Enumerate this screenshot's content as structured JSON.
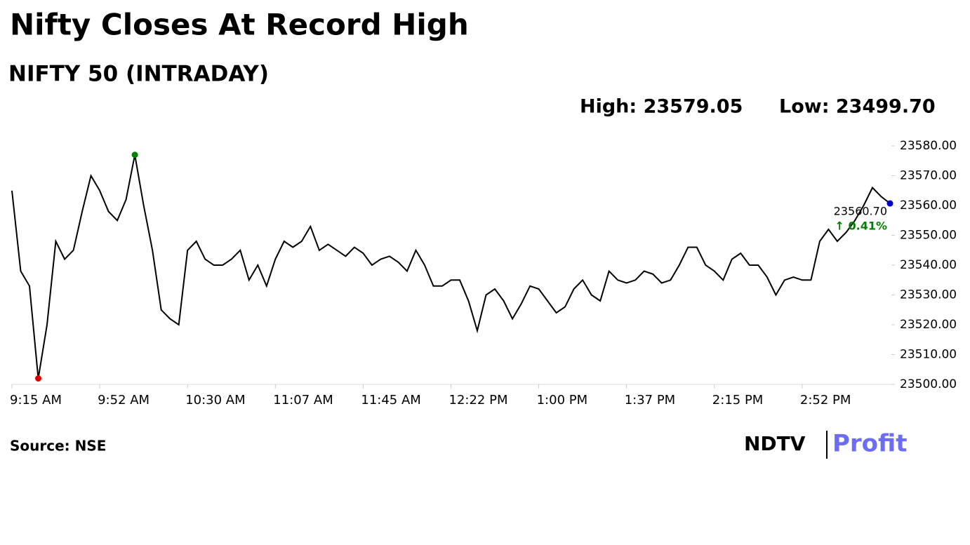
{
  "chart_data": {
    "type": "line",
    "title": "Nifty Closes At Record High",
    "subtitle": "NIFTY 50 (INTRADAY)",
    "high": "High: 23579.05",
    "low": "Low: 23499.70",
    "change": "↑ 0.41%",
    "source": "Source: NSE",
    "brand": [
      "NDTV",
      "Profit"
    ],
    "categories": [
      "9:15 AM",
      null,
      null,
      null,
      null,
      null,
      null,
      null,
      null,
      null,
      "9:52 AM",
      null,
      null,
      null,
      null,
      null,
      null,
      null,
      null,
      null,
      "10:30 AM",
      null,
      null,
      null,
      null,
      null,
      null,
      null,
      null,
      null,
      "11:07 AM",
      null,
      null,
      null,
      null,
      null,
      null,
      null,
      null,
      null,
      "11:45 AM",
      null,
      null,
      null,
      null,
      null,
      null,
      null,
      null,
      null,
      "12:22 PM",
      null,
      null,
      null,
      null,
      null,
      null,
      null,
      null,
      null,
      "1:00 PM",
      null,
      null,
      null,
      null,
      null,
      null,
      null,
      null,
      null,
      "1:37 PM",
      null,
      null,
      null,
      null,
      null,
      null,
      null,
      null,
      null,
      "2:15 PM",
      null,
      null,
      null,
      null,
      null,
      null,
      null,
      null,
      null,
      "2:52 PM",
      null,
      null,
      null,
      null,
      null,
      null,
      null,
      null,
      null,
      null
    ],
    "series": [
      {
        "color": "#000000",
        "values": [
          23565,
          23538,
          23533,
          23502,
          23520,
          23548,
          23542,
          23545,
          23558,
          23570,
          23565,
          23558,
          23555,
          23562,
          23577,
          23560,
          23545,
          23525,
          23522,
          23520,
          23545,
          23548,
          23542,
          23540,
          23540,
          23542,
          23545,
          23535,
          23540,
          23533,
          23542,
          23548,
          23546,
          23548,
          23553,
          23545,
          23547,
          23545,
          23543,
          23546,
          23544,
          23540,
          23542,
          23543,
          23541,
          23538,
          23545,
          23540,
          23533,
          23533,
          23535,
          23535,
          23528,
          23518,
          23530,
          23532,
          23528,
          23522,
          23527,
          23533,
          23532,
          23528,
          23524,
          23526,
          23532,
          23535,
          23530,
          23528,
          23538,
          23535,
          23534,
          23535,
          23538,
          23537,
          23534,
          23535,
          23540,
          23546,
          23546,
          23540,
          23538,
          23535,
          23542,
          23544,
          23540,
          23540,
          23536,
          23530,
          23535,
          23536,
          23535,
          23535,
          23548,
          23552,
          23548,
          23551,
          23555,
          23560,
          23566,
          23563,
          23560.7
        ],
        "value_labels": [
          null,
          null,
          null,
          null,
          null,
          null,
          null,
          null,
          null,
          null,
          null,
          null,
          null,
          null,
          null,
          null,
          null,
          null,
          null,
          null,
          null,
          null,
          null,
          null,
          null,
          null,
          null,
          null,
          null,
          null,
          null,
          null,
          null,
          null,
          null,
          null,
          null,
          null,
          null,
          null,
          null,
          null,
          null,
          null,
          null,
          null,
          null,
          null,
          null,
          null,
          null,
          null,
          null,
          null,
          null,
          null,
          null,
          null,
          null,
          null,
          null,
          null,
          null,
          null,
          null,
          null,
          null,
          null,
          null,
          null,
          null,
          null,
          null,
          null,
          null,
          null,
          null,
          null,
          null,
          null,
          null,
          null,
          null,
          null,
          null,
          null,
          null,
          null,
          null,
          null,
          null,
          null,
          null,
          null,
          null,
          null,
          null,
          null,
          null,
          null,
          "23560.70"
        ]
      }
    ],
    "high_color": "#008000",
    "low_color": "#e00000",
    "last_color": "#0000cc",
    "change_color": "#008000",
    "ylim": [
      23500,
      23580
    ],
    "yticks": [
      {
        "value": 23500,
        "label": "23500.00"
      },
      {
        "value": 23510,
        "label": "23510.00"
      },
      {
        "value": 23520,
        "label": "23520.00"
      },
      {
        "value": 23530,
        "label": "23530.00"
      },
      {
        "value": 23540,
        "label": "23540.00"
      },
      {
        "value": 23550,
        "label": "23550.00"
      },
      {
        "value": 23560,
        "label": "23560.00"
      },
      {
        "value": 23570,
        "label": "23570.00"
      },
      {
        "value": 23580,
        "label": "23580.00"
      }
    ]
  }
}
